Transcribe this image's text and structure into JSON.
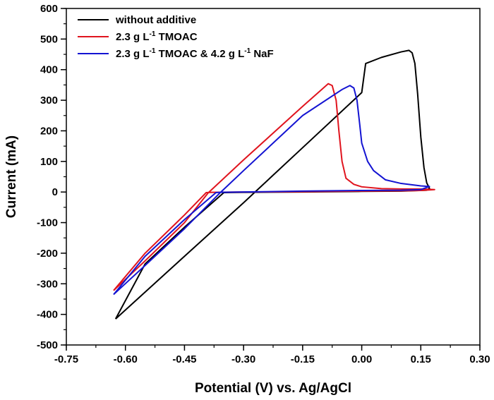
{
  "chart_data": {
    "type": "line",
    "xlabel": "Potential (V) vs. Ag/AgCl",
    "ylabel": "Current (mA)",
    "xlim": [
      -0.75,
      0.3
    ],
    "ylim": [
      -500,
      600
    ],
    "x_ticks": [
      -0.75,
      -0.6,
      -0.45,
      -0.3,
      -0.15,
      0.0,
      0.15,
      0.3
    ],
    "x_tick_labels": [
      "-0.75",
      "-0.60",
      "-0.45",
      "-0.30",
      "-0.15",
      "0.00",
      "0.15",
      "0.30"
    ],
    "y_ticks": [
      -500,
      -400,
      -300,
      -200,
      -100,
      0,
      100,
      200,
      300,
      400,
      500,
      600
    ],
    "y_tick_labels": [
      "-500",
      "-400",
      "-300",
      "-200",
      "-100",
      "0",
      "100",
      "200",
      "300",
      "400",
      "500",
      "600"
    ],
    "legend_position": "top-left",
    "grid": false,
    "series": [
      {
        "name": "without additive",
        "legend": {
          "pre": "without additive"
        },
        "color": "#000000",
        "points": [
          [
            -0.625,
            -415
          ],
          [
            -0.45,
            -210
          ],
          [
            -0.3,
            -35
          ],
          [
            -0.15,
            145
          ],
          [
            0.0,
            325
          ],
          [
            0.01,
            420
          ],
          [
            0.05,
            440
          ],
          [
            0.1,
            458
          ],
          [
            0.12,
            463
          ],
          [
            0.128,
            455
          ],
          [
            0.135,
            420
          ],
          [
            0.142,
            320
          ],
          [
            0.15,
            180
          ],
          [
            0.158,
            80
          ],
          [
            0.165,
            30
          ],
          [
            0.172,
            12
          ],
          [
            0.165,
            6
          ],
          [
            0.1,
            3
          ],
          [
            0.0,
            2
          ],
          [
            -0.15,
            0
          ],
          [
            -0.3,
            -1
          ],
          [
            -0.35,
            -2
          ],
          [
            -0.45,
            -115
          ],
          [
            -0.55,
            -235
          ],
          [
            -0.625,
            -415
          ]
        ]
      },
      {
        "name": "2.3 g L-1 TMOAC",
        "legend": {
          "pre": "2.3 g L",
          "sup": "-1",
          "post": " TMOAC"
        },
        "color": "#e0141e",
        "points": [
          [
            -0.63,
            -322
          ],
          [
            -0.55,
            -225
          ],
          [
            -0.45,
            -100
          ],
          [
            -0.39,
            -3
          ],
          [
            -0.3,
            105
          ],
          [
            -0.15,
            280
          ],
          [
            -0.085,
            354
          ],
          [
            -0.075,
            348
          ],
          [
            -0.065,
            300
          ],
          [
            -0.058,
            200
          ],
          [
            -0.05,
            100
          ],
          [
            -0.04,
            45
          ],
          [
            -0.02,
            25
          ],
          [
            0.0,
            17
          ],
          [
            0.05,
            11
          ],
          [
            0.1,
            10
          ],
          [
            0.15,
            10
          ],
          [
            0.185,
            8
          ],
          [
            0.15,
            5
          ],
          [
            0.1,
            4
          ],
          [
            0.0,
            3
          ],
          [
            -0.15,
            1
          ],
          [
            -0.3,
            0
          ],
          [
            -0.38,
            -1
          ],
          [
            -0.395,
            -2
          ],
          [
            -0.45,
            -75
          ],
          [
            -0.55,
            -200
          ],
          [
            -0.63,
            -322
          ]
        ]
      },
      {
        "name": "2.3 g L-1 TMOAC & 4.2 g L-1 NaF",
        "legend": {
          "pre": "2.3 g L",
          "sup": "-1",
          "mid": " TMOAC & 4.2 g L",
          "sup2": "-1",
          "post": " NaF"
        },
        "color": "#1414d2",
        "points": [
          [
            -0.63,
            -335
          ],
          [
            -0.55,
            -240
          ],
          [
            -0.45,
            -120
          ],
          [
            -0.36,
            -3
          ],
          [
            -0.3,
            70
          ],
          [
            -0.15,
            250
          ],
          [
            -0.05,
            335
          ],
          [
            -0.03,
            348
          ],
          [
            -0.02,
            340
          ],
          [
            -0.012,
            300
          ],
          [
            -0.005,
            220
          ],
          [
            0.0,
            160
          ],
          [
            0.015,
            100
          ],
          [
            0.03,
            70
          ],
          [
            0.06,
            40
          ],
          [
            0.1,
            28
          ],
          [
            0.15,
            20
          ],
          [
            0.172,
            18
          ],
          [
            0.15,
            8
          ],
          [
            0.1,
            6
          ],
          [
            0.0,
            5
          ],
          [
            -0.15,
            3
          ],
          [
            -0.3,
            0
          ],
          [
            -0.36,
            -1
          ],
          [
            -0.37,
            -2
          ],
          [
            -0.45,
            -90
          ],
          [
            -0.55,
            -210
          ],
          [
            -0.63,
            -335
          ]
        ]
      }
    ]
  }
}
